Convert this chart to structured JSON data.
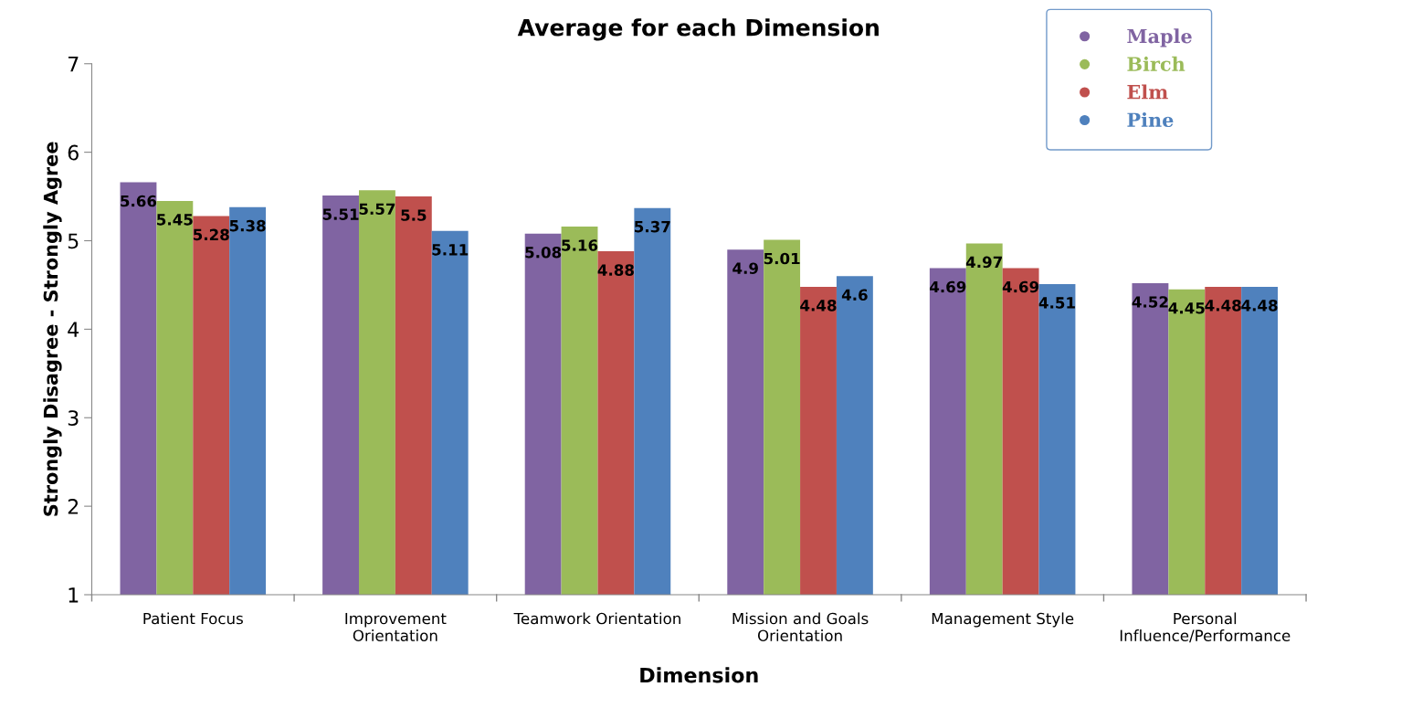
{
  "chart_data": {
    "type": "bar",
    "title": "Average for each Dimension",
    "xlabel": "Dimension",
    "ylabel": "Strongly Disagree - Strongly Agree",
    "categories": [
      "Patient Focus",
      "Improvement\nOrientation",
      "Teamwork Orientation",
      "Mission and Goals\nOrientation",
      "Management Style",
      "Personal\nInfluence/Performance"
    ],
    "series": [
      {
        "name": "Maple",
        "color": "#8064a2",
        "values": [
          5.66,
          5.51,
          5.08,
          4.9,
          4.69,
          4.52
        ]
      },
      {
        "name": "Birch",
        "color": "#9bbb59",
        "values": [
          5.45,
          5.57,
          5.16,
          5.01,
          4.97,
          4.45
        ]
      },
      {
        "name": "Elm",
        "color": "#c0504d",
        "values": [
          5.28,
          5.5,
          4.88,
          4.48,
          4.69,
          4.48
        ]
      },
      {
        "name": "Pine",
        "color": "#4f81bd",
        "values": [
          5.38,
          5.11,
          5.37,
          4.6,
          4.51,
          4.48
        ]
      }
    ],
    "ylim": [
      1,
      7
    ],
    "yticks": [
      1,
      2,
      3,
      4,
      5,
      6,
      7
    ],
    "grid": false,
    "legend": "top right",
    "data_labels": true
  }
}
